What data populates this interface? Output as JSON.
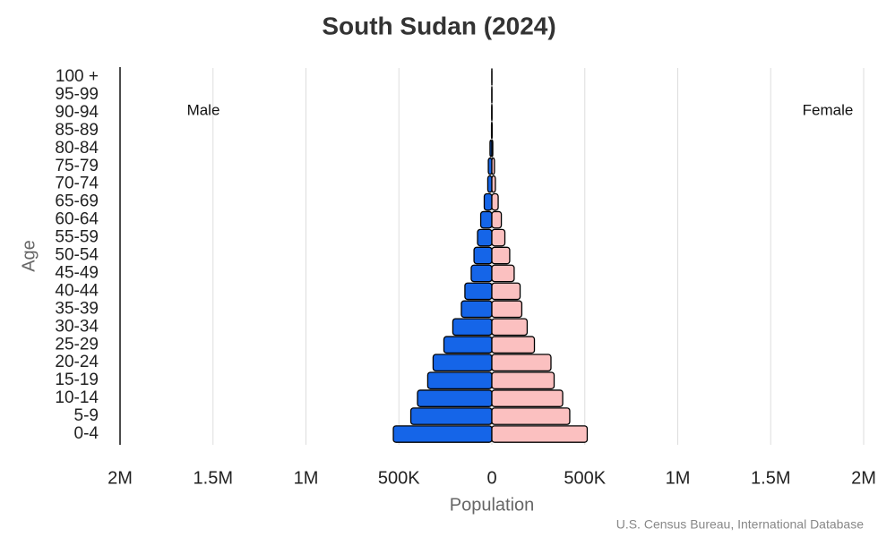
{
  "chart_data": {
    "type": "pyramid",
    "title": "South Sudan (2024)",
    "x_label": "Population",
    "y_label": "Age",
    "source": "U.S. Census Bureau, International Database",
    "categories": [
      "0-4",
      "5-9",
      "10-14",
      "15-19",
      "20-24",
      "25-29",
      "30-34",
      "35-39",
      "40-44",
      "45-49",
      "50-54",
      "55-59",
      "60-64",
      "65-69",
      "70-74",
      "75-79",
      "80-84",
      "85-89",
      "90-94",
      "95-99",
      "100 +"
    ],
    "series": [
      {
        "name": "Male",
        "color": "#1565e8",
        "values": [
          -530000,
          -436000,
          -400000,
          -345000,
          -316000,
          -258000,
          -210000,
          -164000,
          -145000,
          -111000,
          -96000,
          -77000,
          -60000,
          -41000,
          -22000,
          -19000,
          -10000,
          -2000,
          -1000,
          -500,
          -200
        ]
      },
      {
        "name": "Female",
        "color": "#fbc0c0",
        "values": [
          513000,
          419000,
          381000,
          335000,
          318000,
          229000,
          190000,
          161000,
          152000,
          120000,
          96000,
          70000,
          51000,
          34000,
          19000,
          14000,
          5000,
          1500,
          800,
          400,
          200
        ]
      }
    ],
    "xlim": [
      -2000000,
      2000000
    ],
    "xticks": [
      {
        "value": -2000000,
        "label": "2M"
      },
      {
        "value": -1500000,
        "label": "1.5M"
      },
      {
        "value": -1000000,
        "label": "1M"
      },
      {
        "value": -500000,
        "label": "500K"
      },
      0,
      {
        "value": 500000,
        "label": "500K"
      },
      {
        "value": 1000000,
        "label": "1M"
      },
      {
        "value": 1500000,
        "label": "1.5M"
      },
      {
        "value": 2000000,
        "label": "2M"
      }
    ],
    "grid": true
  }
}
